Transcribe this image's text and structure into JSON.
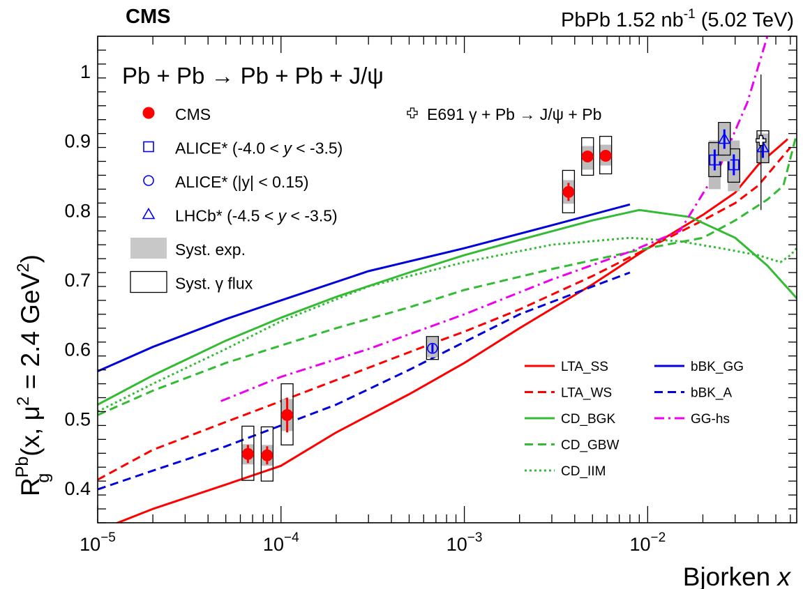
{
  "header": {
    "left": "CMS",
    "right_main": "PbPb 1.52 nb",
    "right_sup": "-1",
    "right_energy": " (5.02 TeV)"
  },
  "chart_data": {
    "type": "scatter",
    "title": "Pb + Pb → Pb + Pb + J/ψ",
    "xlabel_main": "Bjorken ",
    "xlabel_var": "x",
    "ylabel": {
      "base": "R",
      "sup": "Pb",
      "sub": "g",
      "args_a": "(x, μ",
      "args_sq": "2",
      "args_b": " = 2.4 GeV",
      "args_sq2": "2",
      "args_c": ")"
    },
    "x_scale": "log",
    "xlim": [
      1e-05,
      0.065
    ],
    "ylim": [
      0.35,
      1.05
    ],
    "xticks": [
      {
        "value": 1e-05,
        "mant": "10",
        "exp": "−5"
      },
      {
        "value": 0.0001,
        "mant": "10",
        "exp": "−4"
      },
      {
        "value": 0.001,
        "mant": "10",
        "exp": "−3"
      },
      {
        "value": 0.01,
        "mant": "10",
        "exp": "−2"
      }
    ],
    "yticks": [
      {
        "value": 0.4,
        "label": "0.4"
      },
      {
        "value": 0.5,
        "label": "0.5"
      },
      {
        "value": 0.6,
        "label": "0.6"
      },
      {
        "value": 0.7,
        "label": "0.7"
      },
      {
        "value": 0.8,
        "label": "0.8"
      },
      {
        "value": 0.9,
        "label": "0.9"
      },
      {
        "value": 1.0,
        "label": "1"
      }
    ],
    "data_series": [
      {
        "name": "CMS",
        "marker": "filled-circle",
        "color": "#ff0000",
        "points": [
          {
            "x": 6.6e-05,
            "y": 0.449,
            "stat": 0.013,
            "exp": [
              0.434,
              0.463
            ],
            "flux": [
              0.411,
              0.489
            ]
          },
          {
            "x": 8.4e-05,
            "y": 0.447,
            "stat": 0.013,
            "exp": [
              0.432,
              0.462
            ],
            "flux": [
              0.41,
              0.488
            ]
          },
          {
            "x": 0.000108,
            "y": 0.505,
            "stat": 0.025,
            "exp": [
              0.482,
              0.528
            ],
            "flux": [
              0.462,
              0.55
            ]
          },
          {
            "x": 0.0037,
            "y": 0.826,
            "stat": 0.013,
            "exp": [
              0.809,
              0.843
            ],
            "flux": [
              0.796,
              0.857
            ]
          },
          {
            "x": 0.0047,
            "y": 0.877,
            "stat": 0.007,
            "exp": [
              0.858,
              0.892
            ],
            "flux": [
              0.85,
              0.904
            ]
          },
          {
            "x": 0.0059,
            "y": 0.878,
            "stat": 0.006,
            "exp": [
              0.864,
              0.894
            ],
            "flux": [
              0.852,
              0.906
            ]
          }
        ]
      },
      {
        "name": "ALICE* (-4.0 < y < -3.5)",
        "marker": "open-square",
        "color": "#0000ff",
        "points": [
          {
            "x": 0.0232,
            "y": 0.872,
            "stat": 0.015,
            "exp": [
              0.83,
              0.9
            ],
            "flux": [
              0.848,
              0.897
            ]
          },
          {
            "x": 0.0295,
            "y": 0.865,
            "stat": 0.015,
            "exp": [
              0.827,
              0.9
            ],
            "flux": [
              0.84,
              0.888
            ]
          }
        ]
      },
      {
        "name": "ALICE* (|y| < 0.15)",
        "marker": "open-circle",
        "color": "#0000ff",
        "points": [
          {
            "x": 0.00067,
            "y": 0.601,
            "stat": 0.006,
            "exp": [
              0.588,
              0.617
            ],
            "flux": [
              0.585,
              0.618
            ]
          }
        ]
      },
      {
        "name": "LHCb* (-4.5 < y < -3.5)",
        "marker": "open-triangle",
        "color": "#0000ff",
        "points": [
          {
            "x": 0.0262,
            "y": 0.902,
            "stat": 0.014,
            "exp": [
              0.87,
              0.925
            ],
            "flux": [
              0.879,
              0.926
            ]
          },
          {
            "x": 0.0425,
            "y": 0.89,
            "stat": 0.015,
            "exp": [
              0.868,
              0.91
            ],
            "flux": [
              0.868,
              0.914
            ]
          }
        ]
      },
      {
        "name": "E691 γ + Pb → J/ψ + Pb",
        "marker": "open-cross",
        "color": "#000000",
        "points": [
          {
            "x": 0.0415,
            "y": 0.9,
            "err": [
              0.8,
              0.995
            ]
          }
        ]
      }
    ],
    "legend_left": [
      {
        "label": "CMS",
        "marker": "filled-circle"
      },
      {
        "label_a": "ALICE* (-4.0 < ",
        "label_i": "y",
        "label_b": " < -3.5)",
        "marker": "open-square"
      },
      {
        "label_a": "ALICE* (|y| < 0.15)",
        "label_i": "",
        "label_b": "",
        "marker": "open-circle"
      },
      {
        "label_a": "LHCb* (-4.5 < ",
        "label_i": "y",
        "label_b": " < -3.5)",
        "marker": "open-triangle"
      },
      {
        "label": "Syst. exp.",
        "marker": "gray-box"
      },
      {
        "label": "Syst. γ flux",
        "marker": "open-box"
      }
    ],
    "models": [
      {
        "name": "LTA_SS",
        "color": "#ff0000",
        "dash": "solid",
        "points": [
          [
            1.15e-05,
            0.345
          ],
          [
            2e-05,
            0.37
          ],
          [
            5e-05,
            0.405
          ],
          [
            0.0001,
            0.432
          ],
          [
            0.0002,
            0.48
          ],
          [
            0.0005,
            0.535
          ],
          [
            0.001,
            0.58
          ],
          [
            0.002,
            0.63
          ],
          [
            0.005,
            0.693
          ],
          [
            0.01,
            0.745
          ],
          [
            0.02,
            0.793
          ],
          [
            0.03,
            0.825
          ],
          [
            0.04,
            0.865
          ],
          [
            0.058,
            0.902
          ]
        ]
      },
      {
        "name": "LTA_WS",
        "color": "#ff0000",
        "dash": "dashed",
        "points": [
          [
            1e-05,
            0.412
          ],
          [
            2e-05,
            0.455
          ],
          [
            5e-05,
            0.495
          ],
          [
            0.0001,
            0.525
          ],
          [
            0.0003,
            0.573
          ],
          [
            0.0007,
            0.61
          ],
          [
            0.001,
            0.625
          ],
          [
            0.002,
            0.657
          ],
          [
            0.005,
            0.705
          ],
          [
            0.01,
            0.745
          ],
          [
            0.02,
            0.785
          ],
          [
            0.03,
            0.81
          ],
          [
            0.04,
            0.835
          ],
          [
            0.06,
            0.89
          ]
        ]
      },
      {
        "name": "CD_BGK",
        "color": "#33bb33",
        "dash": "solid",
        "points": [
          [
            1e-05,
            0.52
          ],
          [
            2e-05,
            0.562
          ],
          [
            5e-05,
            0.612
          ],
          [
            0.0001,
            0.645
          ],
          [
            0.0002,
            0.675
          ],
          [
            0.0005,
            0.71
          ],
          [
            0.001,
            0.735
          ],
          [
            0.002,
            0.757
          ],
          [
            0.005,
            0.785
          ],
          [
            0.009,
            0.8
          ],
          [
            0.017,
            0.79
          ],
          [
            0.03,
            0.76
          ],
          [
            0.045,
            0.72
          ],
          [
            0.065,
            0.673
          ]
        ]
      },
      {
        "name": "CD_GBW",
        "color": "#33bb33",
        "dash": "dashed",
        "points": [
          [
            1e-05,
            0.505
          ],
          [
            2e-05,
            0.54
          ],
          [
            5e-05,
            0.58
          ],
          [
            0.0001,
            0.605
          ],
          [
            0.0002,
            0.63
          ],
          [
            0.0005,
            0.66
          ],
          [
            0.001,
            0.685
          ],
          [
            0.003,
            0.715
          ],
          [
            0.01,
            0.745
          ],
          [
            0.02,
            0.76
          ],
          [
            0.03,
            0.785
          ],
          [
            0.045,
            0.815
          ],
          [
            0.055,
            0.835
          ],
          [
            0.065,
            0.91
          ]
        ]
      },
      {
        "name": "CD_IIM",
        "color": "#33bb33",
        "dash": "dotted",
        "points": [
          [
            1e-05,
            0.51
          ],
          [
            2e-05,
            0.55
          ],
          [
            5e-05,
            0.6
          ],
          [
            0.0001,
            0.64
          ],
          [
            0.0003,
            0.69
          ],
          [
            0.001,
            0.725
          ],
          [
            0.003,
            0.75
          ],
          [
            0.008,
            0.76
          ],
          [
            0.015,
            0.755
          ],
          [
            0.025,
            0.745
          ],
          [
            0.04,
            0.735
          ],
          [
            0.053,
            0.725
          ],
          [
            0.06,
            0.735
          ],
          [
            0.065,
            0.745
          ]
        ]
      },
      {
        "name": "bBK_GG",
        "color": "#0000dd",
        "dash": "solid",
        "points": [
          [
            1e-05,
            0.568
          ],
          [
            2e-05,
            0.603
          ],
          [
            5e-05,
            0.643
          ],
          [
            0.0001,
            0.67
          ],
          [
            0.0003,
            0.712
          ],
          [
            0.001,
            0.745
          ],
          [
            0.003,
            0.778
          ],
          [
            0.008,
            0.808
          ]
        ]
      },
      {
        "name": "bBK_A",
        "color": "#0000dd",
        "dash": "dashed",
        "points": [
          [
            1e-05,
            0.398
          ],
          [
            2e-05,
            0.425
          ],
          [
            5e-05,
            0.46
          ],
          [
            0.0001,
            0.49
          ],
          [
            0.0002,
            0.52
          ],
          [
            0.0005,
            0.57
          ],
          [
            0.001,
            0.61
          ],
          [
            0.002,
            0.65
          ],
          [
            0.005,
            0.69
          ],
          [
            0.008,
            0.71
          ]
        ]
      },
      {
        "name": "GG-hs",
        "color": "#ee00ee",
        "dash": "dashdot",
        "points": [
          [
            4.7e-05,
            0.525
          ],
          [
            0.0001,
            0.56
          ],
          [
            0.0003,
            0.6
          ],
          [
            0.001,
            0.65
          ],
          [
            0.003,
            0.7
          ],
          [
            0.008,
            0.74
          ],
          [
            0.015,
            0.77
          ],
          [
            0.025,
            0.865
          ],
          [
            0.035,
            0.955
          ],
          [
            0.045,
            1.05
          ]
        ]
      }
    ],
    "legend_models_left": [
      "LTA_SS",
      "LTA_WS",
      "CD_BGK",
      "CD_GBW",
      "CD_IIM"
    ],
    "legend_models_right": [
      "bBK_GG",
      "bBK_A",
      "GG-hs"
    ]
  }
}
